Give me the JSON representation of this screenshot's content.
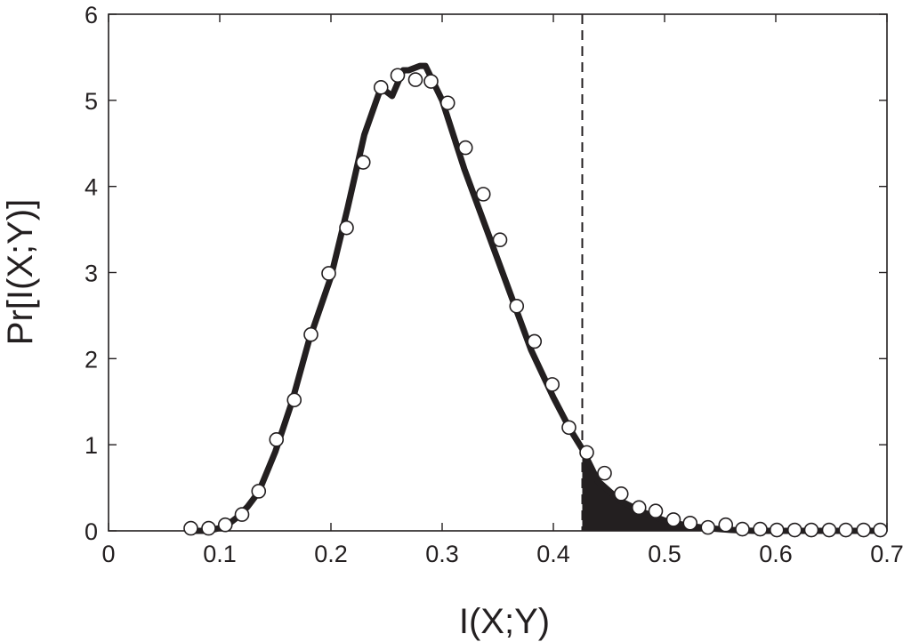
{
  "chart_data": {
    "type": "line",
    "xlabel": "I(X;Y)",
    "ylabel": "Pr[I(X;Y)]",
    "xlim": [
      0,
      0.7
    ],
    "ylim": [
      0,
      6
    ],
    "xticks": [
      "0",
      "0.1",
      "0.2",
      "0.3",
      "0.4",
      "0.5",
      "0.6",
      "0.7"
    ],
    "yticks": [
      "0",
      "1",
      "2",
      "3",
      "4",
      "5",
      "6"
    ],
    "grid": false,
    "threshold_x": 0.426,
    "series": [
      {
        "style": "thick-line",
        "color": "#231f20",
        "x": [
          0.075,
          0.09,
          0.105,
          0.115,
          0.125,
          0.135,
          0.15,
          0.165,
          0.18,
          0.2,
          0.215,
          0.23,
          0.245,
          0.255,
          0.265,
          0.27,
          0.28,
          0.285,
          0.3,
          0.32,
          0.34,
          0.36,
          0.38,
          0.4,
          0.415,
          0.426,
          0.44,
          0.46,
          0.48,
          0.5,
          0.52,
          0.54,
          0.56,
          0.58,
          0.6,
          0.62,
          0.64,
          0.66,
          0.68,
          0.69
        ],
        "y": [
          0.0,
          0.0,
          0.05,
          0.15,
          0.28,
          0.45,
          0.92,
          1.5,
          2.2,
          2.95,
          3.75,
          4.6,
          5.15,
          5.05,
          5.35,
          5.35,
          5.4,
          5.4,
          5.0,
          4.2,
          3.5,
          2.8,
          2.1,
          1.55,
          1.18,
          0.95,
          0.58,
          0.35,
          0.22,
          0.12,
          0.06,
          0.03,
          0.01,
          0.0,
          0.0,
          0.0,
          0.0,
          0.0,
          0.0,
          0.0
        ]
      },
      {
        "style": "open-circles",
        "color": "#231f20",
        "x": [
          0.074,
          0.09,
          0.105,
          0.12,
          0.135,
          0.151,
          0.167,
          0.182,
          0.198,
          0.214,
          0.229,
          0.245,
          0.26,
          0.276,
          0.29,
          0.305,
          0.321,
          0.337,
          0.352,
          0.367,
          0.383,
          0.399,
          0.414,
          0.43,
          0.446,
          0.461,
          0.477,
          0.492,
          0.508,
          0.523,
          0.539,
          0.555,
          0.57,
          0.586,
          0.601,
          0.617,
          0.632,
          0.648,
          0.663,
          0.679,
          0.694
        ],
        "y": [
          0.03,
          0.03,
          0.07,
          0.19,
          0.46,
          1.06,
          1.52,
          2.28,
          2.99,
          3.52,
          4.28,
          5.15,
          5.29,
          5.24,
          5.22,
          4.97,
          4.45,
          3.91,
          3.38,
          2.61,
          2.2,
          1.7,
          1.2,
          0.91,
          0.67,
          0.43,
          0.27,
          0.23,
          0.13,
          0.09,
          0.04,
          0.07,
          0.02,
          0.02,
          0.01,
          0.01,
          0.01,
          0.01,
          0.01,
          0.01,
          0.01
        ]
      }
    ]
  }
}
